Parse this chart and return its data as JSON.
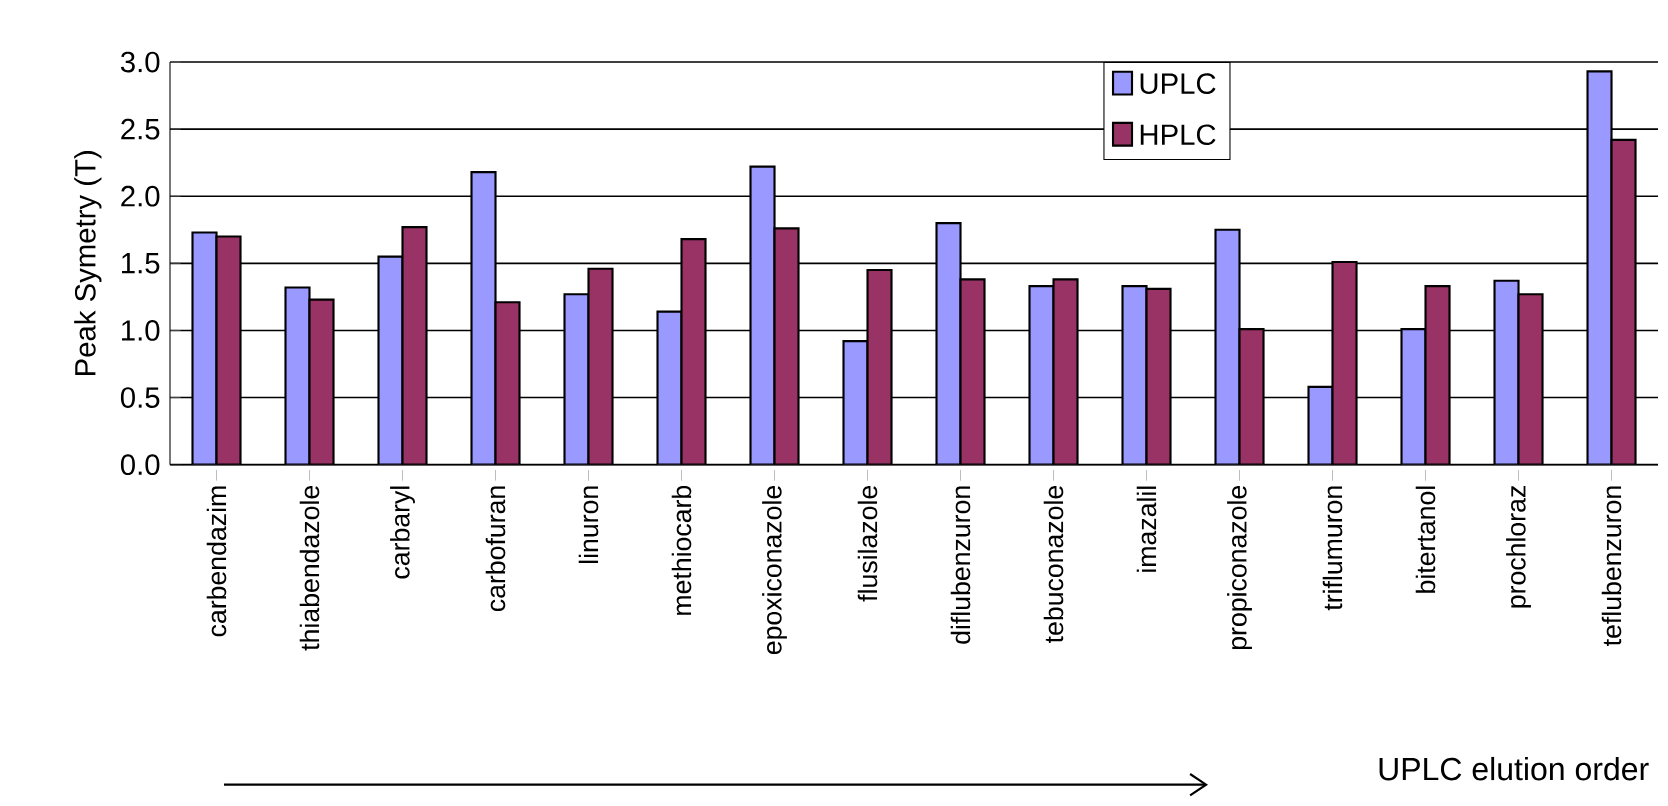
{
  "chart_data": {
    "type": "bar",
    "ylabel": "Peak Symetry (T)",
    "categories": [
      "carbendazim",
      "thiabendazole",
      "carbaryl",
      "carbofuran",
      "linuron",
      "methiocarb",
      "epoxiconazole",
      "flusilazole",
      "diflubenzuron",
      "tebuconazole",
      "imazalil",
      "propiconazole",
      "triflumuron",
      "bitertanol",
      "prochloraz",
      "teflubenzuron"
    ],
    "series": [
      {
        "name": "UPLC",
        "color": "#9999ff",
        "values": [
          1.73,
          1.32,
          1.55,
          2.18,
          1.27,
          1.14,
          2.22,
          0.92,
          1.8,
          1.33,
          1.33,
          1.75,
          0.58,
          1.01,
          1.37,
          2.93
        ]
      },
      {
        "name": "HPLC",
        "color": "#993366",
        "values": [
          1.7,
          1.23,
          1.77,
          1.21,
          1.46,
          1.68,
          1.76,
          1.45,
          1.38,
          1.38,
          1.31,
          1.01,
          1.51,
          1.33,
          1.27,
          2.42
        ]
      }
    ],
    "ylim": [
      0,
      3
    ],
    "yticks": [
      {
        "value": 0,
        "label": "0.0"
      },
      {
        "value": 0.5,
        "label": "0.5"
      },
      {
        "value": 1,
        "label": "1.0"
      },
      {
        "value": 1.5,
        "label": "1.5"
      },
      {
        "value": 2,
        "label": "2.0"
      },
      {
        "value": 2.5,
        "label": "2.5"
      },
      {
        "value": 3,
        "label": "3.0"
      }
    ],
    "grid": "y",
    "legend": "top",
    "annotations": [
      "UPLC elution order"
    ]
  }
}
